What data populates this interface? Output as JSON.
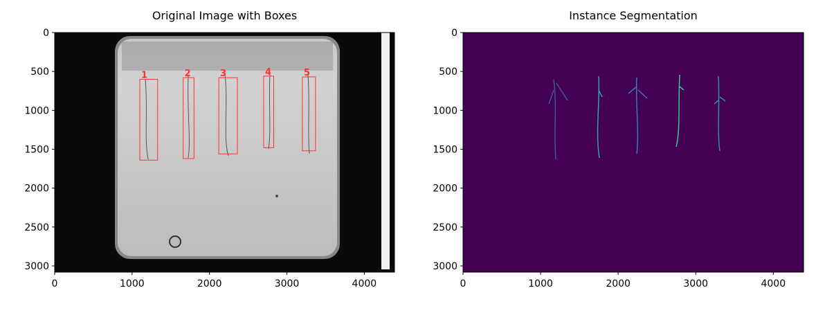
{
  "chart_data": [
    {
      "type": "image",
      "title": "Original Image with Boxes",
      "xlim": [
        0,
        4390
      ],
      "ylim": [
        3080,
        0
      ],
      "xticks": [
        0,
        1000,
        2000,
        3000,
        4000
      ],
      "yticks": [
        0,
        500,
        1000,
        1500,
        2000,
        2500,
        3000
      ],
      "box_color": "#ff3030",
      "boxes": [
        {
          "label": "1",
          "x": [
            1100,
            1330
          ],
          "y": [
            600,
            1640
          ]
        },
        {
          "label": "2",
          "x": [
            1660,
            1800
          ],
          "y": [
            580,
            1620
          ]
        },
        {
          "label": "3",
          "x": [
            2120,
            2360
          ],
          "y": [
            580,
            1560
          ]
        },
        {
          "label": "4",
          "x": [
            2700,
            2830
          ],
          "y": [
            560,
            1480
          ]
        },
        {
          "label": "5",
          "x": [
            3200,
            3370
          ],
          "y": [
            570,
            1520
          ]
        }
      ]
    },
    {
      "type": "image",
      "title": "Instance Segmentation",
      "xlim": [
        0,
        4390
      ],
      "ylim": [
        3080,
        0
      ],
      "xticks": [
        0,
        1000,
        2000,
        3000,
        4000
      ],
      "yticks": [
        0,
        500,
        1000,
        1500,
        2000,
        2500,
        3000
      ]
    }
  ]
}
